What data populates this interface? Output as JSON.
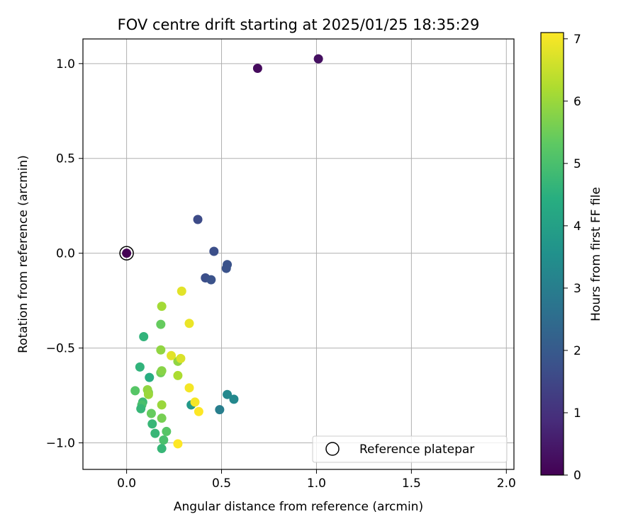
{
  "chart_data": {
    "type": "scatter",
    "title": "FOV centre drift starting at 2025/01/25 18:35:29",
    "xlabel": "Angular distance from reference (arcmin)",
    "ylabel": "Rotation from reference (arcmin)",
    "xlim": [
      -0.23,
      2.04
    ],
    "ylim": [
      -1.14,
      1.13
    ],
    "xticks": [
      0.0,
      0.5,
      1.0,
      1.5,
      2.0
    ],
    "xtick_labels": [
      "0.0",
      "0.5",
      "1.0",
      "1.5",
      "2.0"
    ],
    "yticks": [
      1.0,
      0.5,
      0.0,
      -0.5,
      -1.0
    ],
    "ytick_labels": [
      "1.0",
      "0.5",
      "0.0",
      "−0.5",
      "−1.0"
    ],
    "grid": true,
    "colormap": "viridis",
    "colorbar": {
      "label": "Hours from first FF file",
      "range": [
        0,
        7.1
      ],
      "ticks": [
        0,
        1,
        2,
        3,
        4,
        5,
        6,
        7
      ],
      "tick_labels": [
        "0",
        "1",
        "2",
        "3",
        "4",
        "5",
        "6",
        "7"
      ]
    },
    "legend": {
      "placement": "lower-right",
      "entries": [
        "Reference platepar"
      ]
    },
    "reference_point": {
      "x": 0.0,
      "y": 0.0,
      "label": "Reference platepar"
    },
    "points": [
      {
        "x": 0.0,
        "y": 0.0,
        "t": 0.0
      },
      {
        "x": 0.69,
        "y": 0.975,
        "t": 0.2
      },
      {
        "x": 1.01,
        "y": 1.025,
        "t": 0.3
      },
      {
        "x": 0.375,
        "y": 0.178,
        "t": 1.6
      },
      {
        "x": 0.46,
        "y": 0.01,
        "t": 1.7
      },
      {
        "x": 0.53,
        "y": -0.06,
        "t": 1.8
      },
      {
        "x": 0.525,
        "y": -0.08,
        "t": 1.8
      },
      {
        "x": 0.415,
        "y": -0.13,
        "t": 1.7
      },
      {
        "x": 0.445,
        "y": -0.14,
        "t": 1.8
      },
      {
        "x": 0.49,
        "y": -0.825,
        "t": 3.0
      },
      {
        "x": 0.53,
        "y": -0.745,
        "t": 3.3
      },
      {
        "x": 0.565,
        "y": -0.77,
        "t": 3.3
      },
      {
        "x": 0.34,
        "y": -0.8,
        "t": 3.8
      },
      {
        "x": 0.09,
        "y": -0.44,
        "t": 4.6
      },
      {
        "x": 0.07,
        "y": -0.6,
        "t": 4.6
      },
      {
        "x": 0.045,
        "y": -0.725,
        "t": 5.2
      },
      {
        "x": 0.12,
        "y": -0.655,
        "t": 4.4
      },
      {
        "x": 0.085,
        "y": -0.785,
        "t": 4.8
      },
      {
        "x": 0.08,
        "y": -0.8,
        "t": 5.0
      },
      {
        "x": 0.075,
        "y": -0.82,
        "t": 4.7
      },
      {
        "x": 0.135,
        "y": -0.9,
        "t": 4.7
      },
      {
        "x": 0.15,
        "y": -0.95,
        "t": 4.7
      },
      {
        "x": 0.185,
        "y": -1.03,
        "t": 4.7
      },
      {
        "x": 0.21,
        "y": -0.94,
        "t": 5.2
      },
      {
        "x": 0.195,
        "y": -0.985,
        "t": 5.0
      },
      {
        "x": 0.13,
        "y": -0.845,
        "t": 5.4
      },
      {
        "x": 0.185,
        "y": -0.87,
        "t": 5.6
      },
      {
        "x": 0.18,
        "y": -0.63,
        "t": 5.5
      },
      {
        "x": 0.185,
        "y": -0.62,
        "t": 5.8
      },
      {
        "x": 0.18,
        "y": -0.375,
        "t": 5.4
      },
      {
        "x": 0.185,
        "y": -0.28,
        "t": 6.1
      },
      {
        "x": 0.18,
        "y": -0.51,
        "t": 5.9
      },
      {
        "x": 0.115,
        "y": -0.735,
        "t": 5.6
      },
      {
        "x": 0.11,
        "y": -0.72,
        "t": 5.9
      },
      {
        "x": 0.115,
        "y": -0.745,
        "t": 6.0
      },
      {
        "x": 0.185,
        "y": -0.8,
        "t": 6.0
      },
      {
        "x": 0.27,
        "y": -0.57,
        "t": 5.9
      },
      {
        "x": 0.27,
        "y": -0.645,
        "t": 6.2
      },
      {
        "x": 0.285,
        "y": -0.555,
        "t": 6.7
      },
      {
        "x": 0.235,
        "y": -0.54,
        "t": 6.8
      },
      {
        "x": 0.29,
        "y": -0.2,
        "t": 6.8
      },
      {
        "x": 0.33,
        "y": -0.37,
        "t": 6.9
      },
      {
        "x": 0.33,
        "y": -0.71,
        "t": 7.0
      },
      {
        "x": 0.36,
        "y": -0.785,
        "t": 7.0
      },
      {
        "x": 0.38,
        "y": -0.835,
        "t": 7.1
      },
      {
        "x": 0.27,
        "y": -1.005,
        "t": 7.1
      }
    ]
  }
}
